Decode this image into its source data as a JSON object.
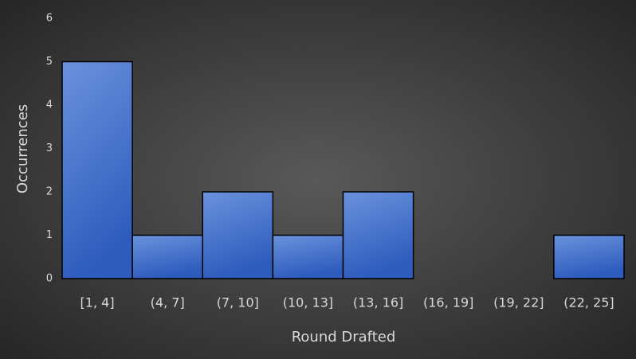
{
  "chart_data": {
    "type": "bar",
    "x_label": "Round Drafted",
    "y_label": "Occurrences",
    "categories": [
      "[1, 4]",
      "(4, 7]",
      "(7, 10]",
      "(10, 13]",
      "(13, 16]",
      "(16, 19]",
      "(19, 22]",
      "(22, 25]"
    ],
    "values": [
      5,
      1,
      2,
      1,
      2,
      0,
      0,
      1
    ],
    "color": "#4472c4",
    "ylim": [
      0,
      6
    ],
    "yticks": [
      0,
      1,
      2,
      3,
      4,
      5,
      6
    ],
    "grid": false
  }
}
